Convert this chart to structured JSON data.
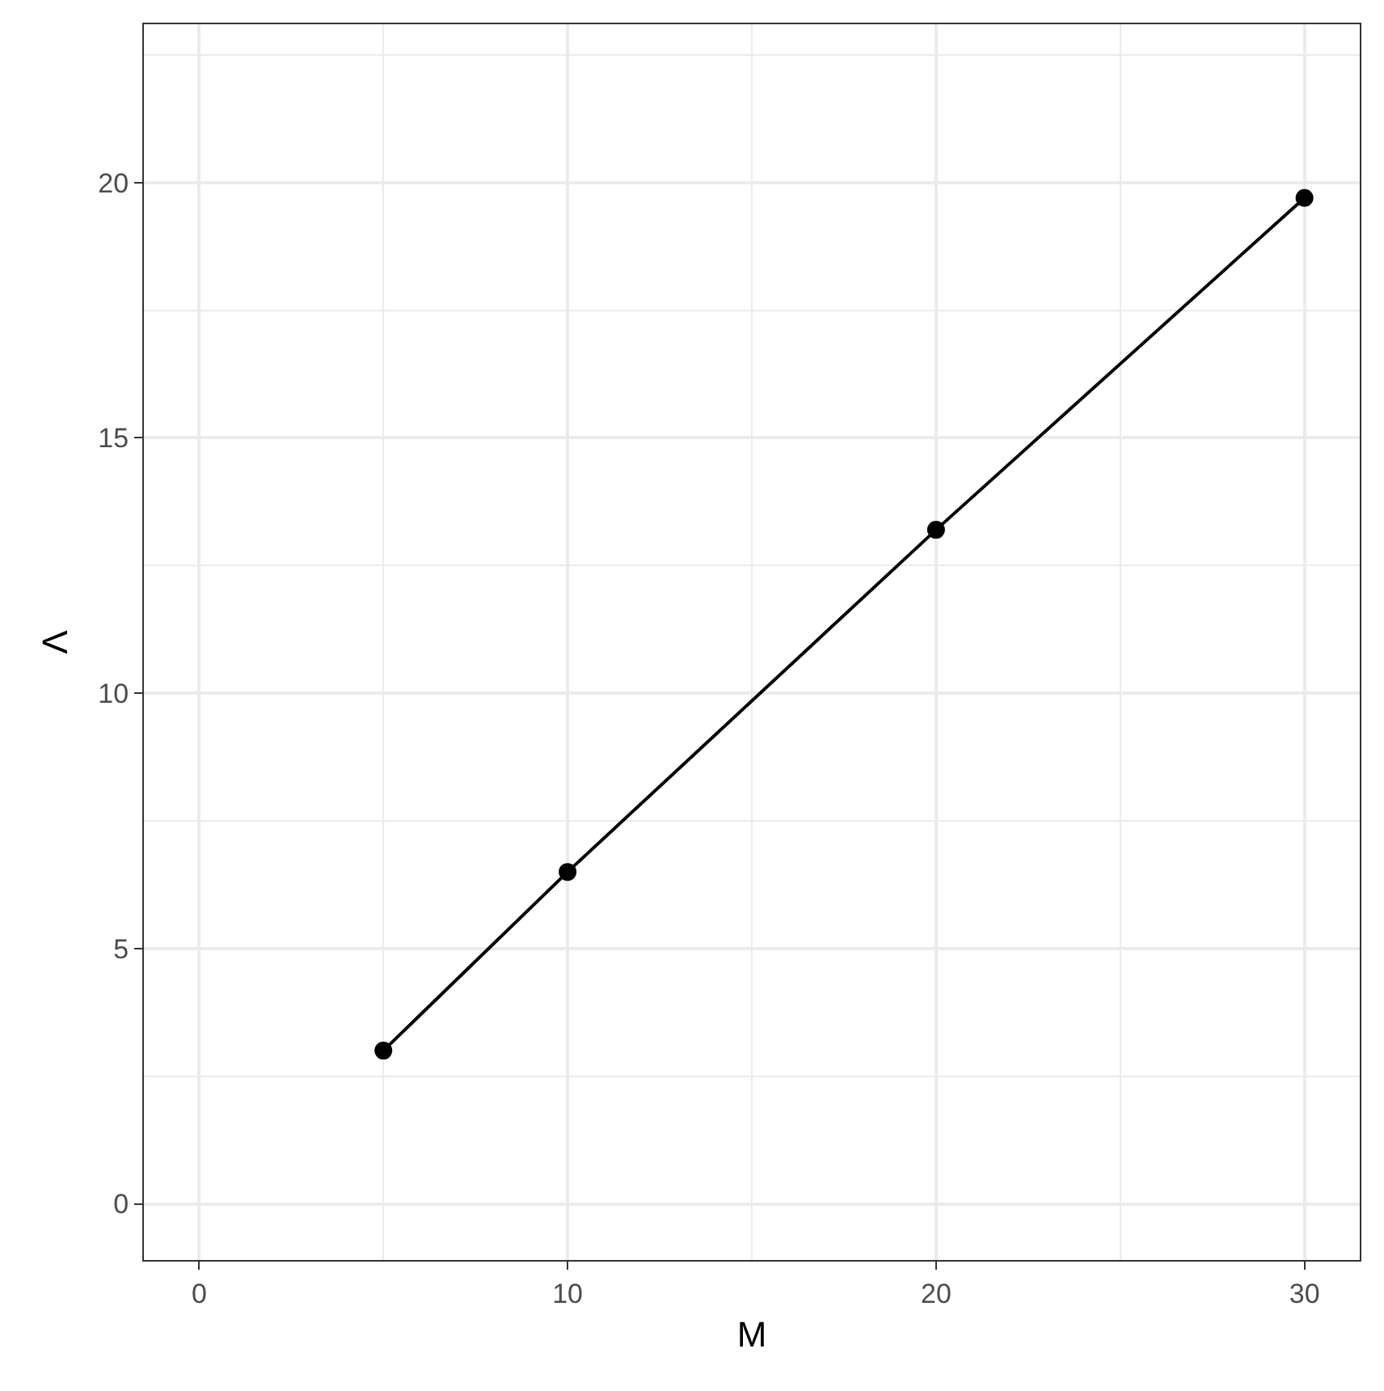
{
  "chart_data": {
    "type": "line",
    "xlabel": "M",
    "ylabel": "Λ",
    "x": [
      5,
      10,
      20,
      30
    ],
    "series": [
      {
        "color": "#000000",
        "values": [
          3.0,
          6.5,
          13.2,
          19.7
        ]
      }
    ],
    "marker": "circle",
    "line_style": "solid",
    "grid": true,
    "xlim": [
      -1.5,
      31.5
    ],
    "ylim": [
      -1.1,
      23.1
    ],
    "xticks": [
      0,
      {
        "value": 5,
        "label": null
      },
      10,
      {
        "value": 15,
        "label": null
      },
      20,
      {
        "value": 25,
        "label": null
      },
      30
    ],
    "yticks": [
      0,
      {
        "value": 2.5,
        "label": null
      },
      5,
      {
        "value": 7.5,
        "label": null
      },
      10,
      {
        "value": 12.5,
        "label": null
      },
      15,
      {
        "value": 17.5,
        "label": null
      },
      20,
      {
        "value": 22.5,
        "label": null
      }
    ]
  }
}
